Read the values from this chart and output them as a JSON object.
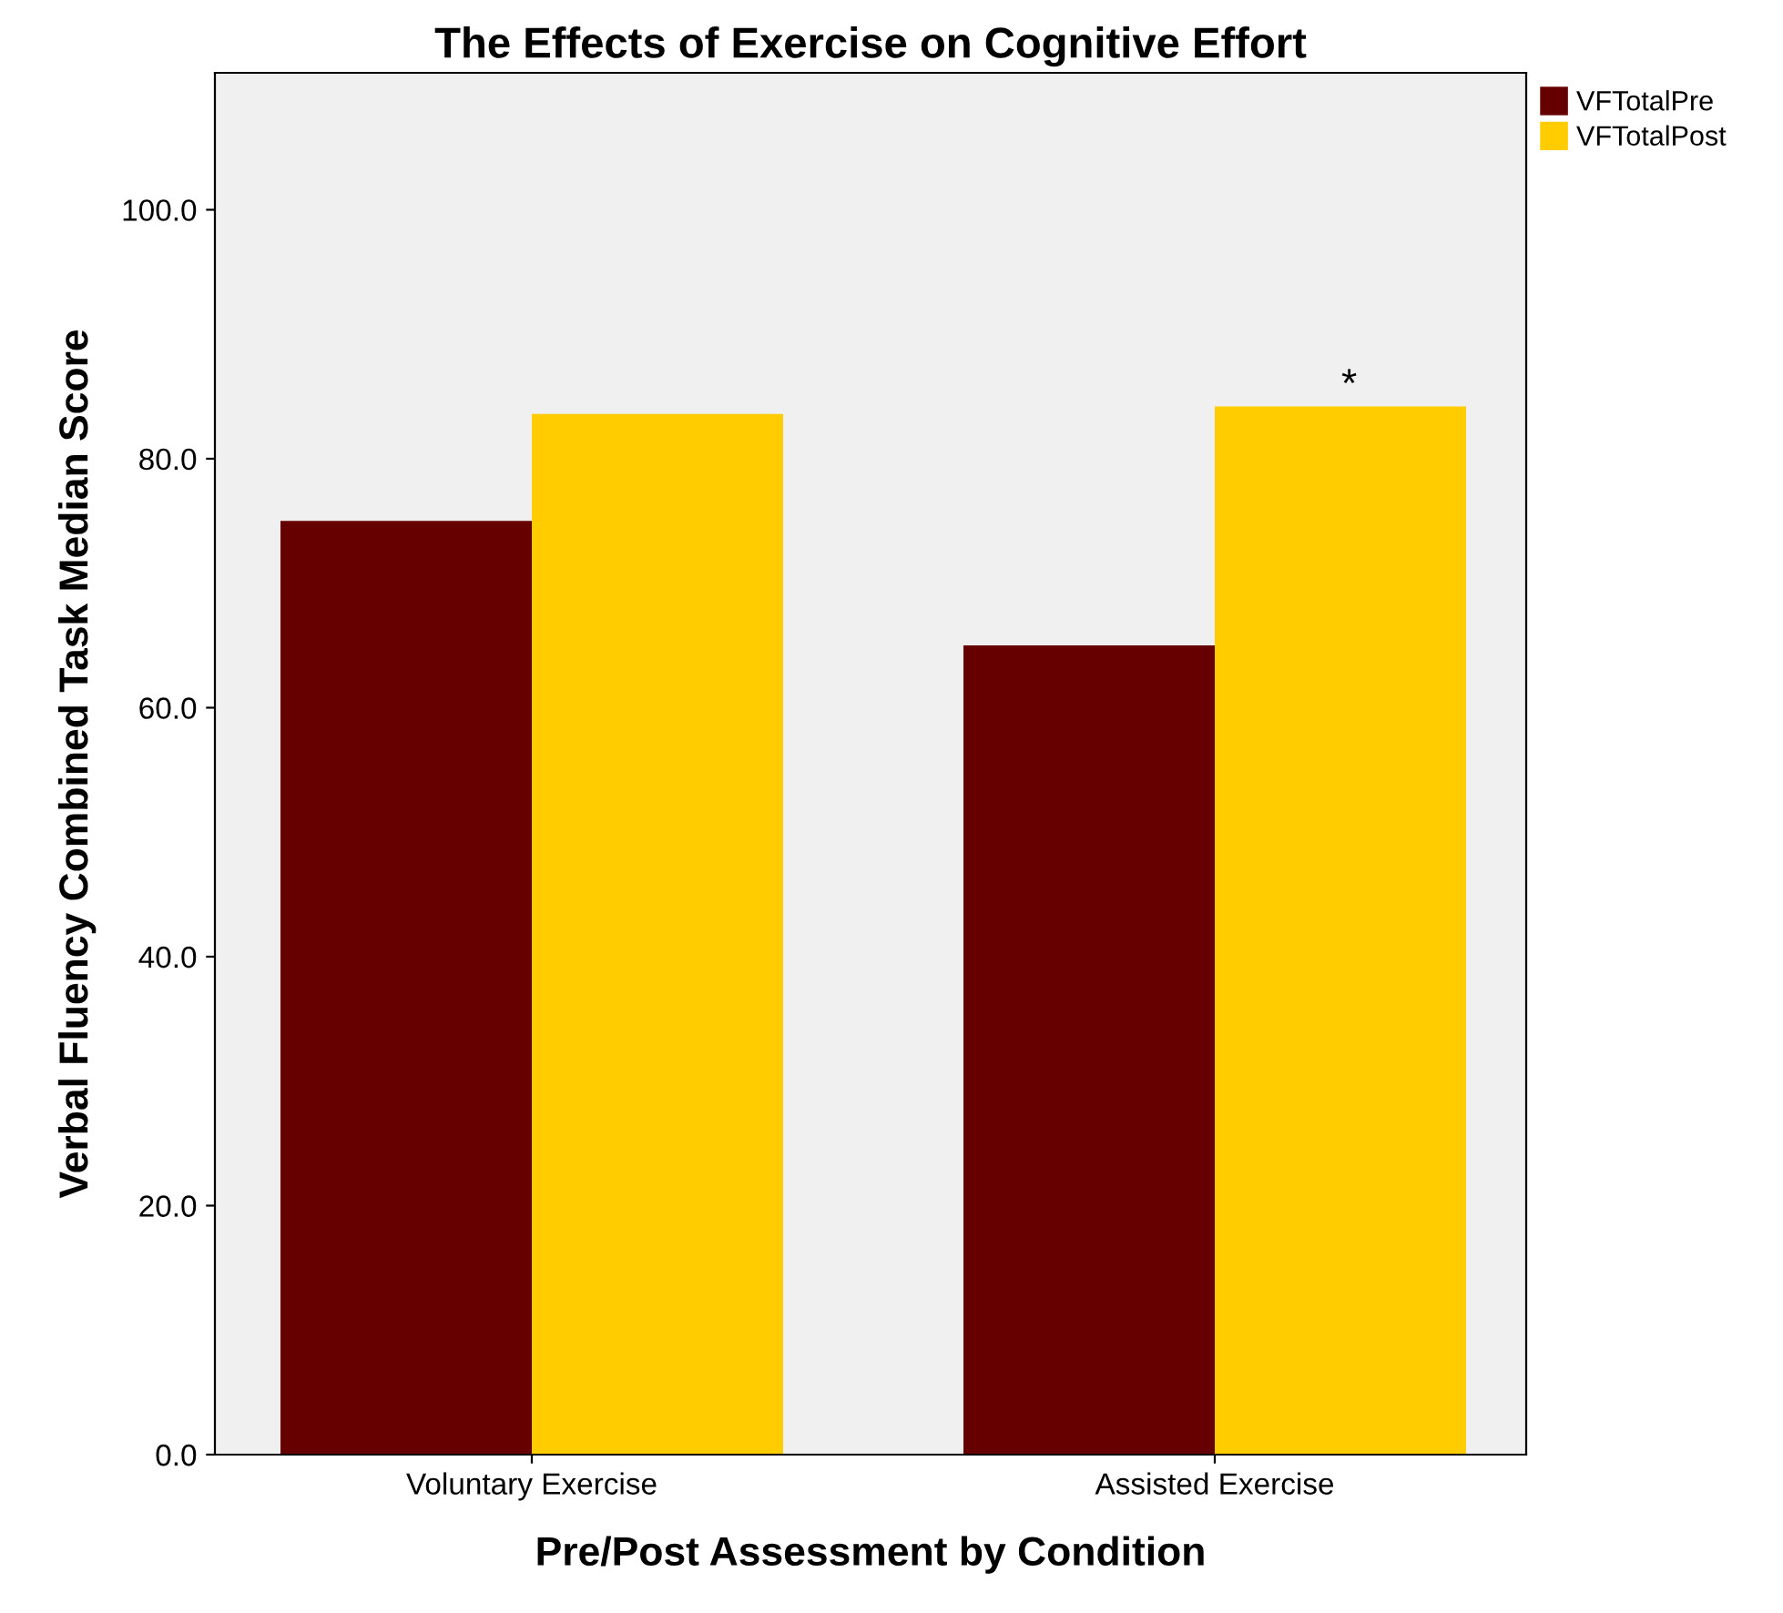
{
  "chart_data": {
    "type": "bar",
    "title": "The Effects of Exercise on Cognitive Effort",
    "xlabel": "Pre/Post Assessment by Condition",
    "ylabel": "Verbal Fluency Combined Task Median Score",
    "categories": [
      "Voluntary Exercise",
      "Assisted Exercise"
    ],
    "series": [
      {
        "name": "VFTotalPre",
        "color": "#660000",
        "values": [
          75.0,
          65.0
        ]
      },
      {
        "name": "VFTotalPost",
        "color": "#ffcc00",
        "values": [
          83.6,
          84.2
        ]
      }
    ],
    "ylim": [
      0,
      111
    ],
    "yticks": [
      {
        "value": 0,
        "label": "0.0"
      },
      {
        "value": 20,
        "label": "20.0"
      },
      {
        "value": 40,
        "label": "40.0"
      },
      {
        "value": 60,
        "label": "60.0"
      },
      {
        "value": 80,
        "label": "80.0"
      },
      {
        "value": 100,
        "label": "100.0"
      }
    ],
    "annotations": [
      "*"
    ],
    "grid": false,
    "legend": "top right"
  }
}
